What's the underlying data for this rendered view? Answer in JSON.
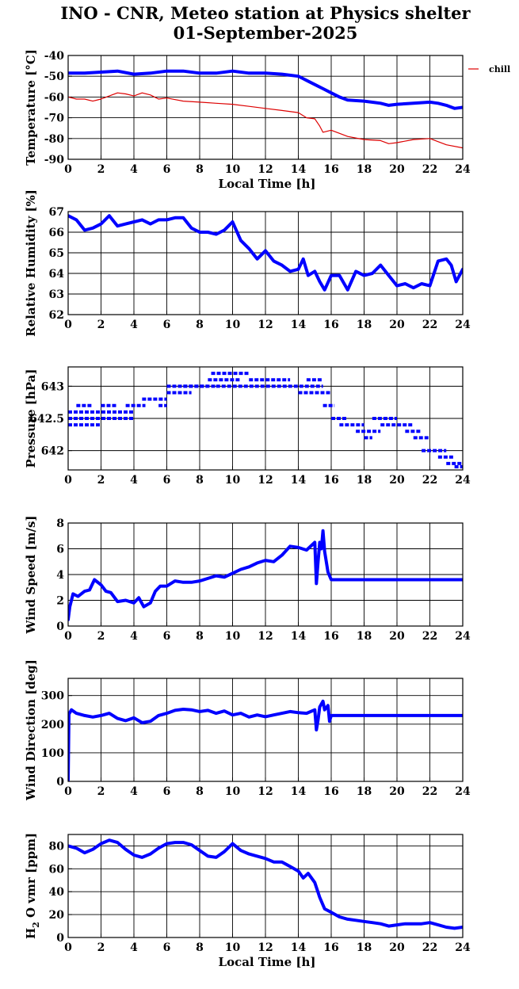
{
  "header": {
    "title_line1": "INO - CNR, Meteo station at Physics shelter",
    "title_line2": "01-September-2025"
  },
  "colors": {
    "series_main": "#0000ff",
    "series_chill": "#dd0000",
    "axes": "#000000",
    "grid": "#000000"
  },
  "chart_data": [
    {
      "type": "line",
      "ylabel": "Temperature [°C]",
      "xlabel": "Local Time [h]",
      "xlim": [
        0,
        24
      ],
      "ylim": [
        -90,
        -40
      ],
      "xticks": [
        "0",
        "2",
        "4",
        "6",
        "8",
        "10",
        "12",
        "14",
        "16",
        "18",
        "20",
        "22",
        "24"
      ],
      "yticks": [
        "-90",
        "-80",
        "-70",
        "-60",
        "-50",
        "-40"
      ],
      "grid": true,
      "legend": {
        "placement": "right",
        "entries": [
          "chill"
        ]
      },
      "series": [
        {
          "color": "#0000ff",
          "x": [
            0,
            1,
            2,
            3,
            4,
            5,
            6,
            7,
            8,
            9,
            10,
            11,
            12,
            13,
            14,
            14.5,
            15,
            15.5,
            16,
            16.5,
            17,
            18,
            19,
            19.5,
            20,
            21,
            22,
            22.5,
            23,
            23.5,
            24
          ],
          "y": [
            -48.5,
            -48.5,
            -48,
            -47.5,
            -49,
            -48.5,
            -47.5,
            -47.5,
            -48.5,
            -48.5,
            -47.5,
            -48.5,
            -48.5,
            -49,
            -50,
            -52,
            -54,
            -56,
            -58,
            -60,
            -61.5,
            -62,
            -63,
            -64,
            -63.5,
            -63,
            -62.5,
            -63,
            -64,
            -65.5,
            -65
          ]
        },
        {
          "name": "chill",
          "color": "#dd0000",
          "x": [
            0,
            0.5,
            1,
            1.5,
            2,
            2.5,
            3,
            3.5,
            4,
            4.5,
            5,
            5.5,
            6,
            7,
            8,
            9,
            10,
            11,
            12,
            13,
            14,
            14.5,
            15,
            15.3,
            15.5,
            16,
            17,
            18,
            19,
            19.5,
            20,
            21,
            22,
            23,
            24
          ],
          "y": [
            -60,
            -61,
            -61,
            -62,
            -61,
            -59.5,
            -58,
            -58.5,
            -59.5,
            -58,
            -59,
            -61,
            -60.5,
            -62,
            -62.5,
            -63,
            -63.5,
            -64.5,
            -65.5,
            -66.5,
            -67.5,
            -70,
            -70.5,
            -74,
            -77,
            -76,
            -79,
            -80.5,
            -81,
            -82.5,
            -82,
            -80.5,
            -80,
            -83,
            -84.5
          ]
        }
      ]
    },
    {
      "type": "line",
      "ylabel": "Relative Humidity [%]",
      "xlabel": "",
      "xlim": [
        0,
        24
      ],
      "ylim": [
        62,
        67
      ],
      "xticks": [
        "0",
        "2",
        "4",
        "6",
        "8",
        "10",
        "12",
        "14",
        "16",
        "18",
        "20",
        "22",
        "24"
      ],
      "yticks": [
        "62",
        "63",
        "64",
        "65",
        "66",
        "67"
      ],
      "grid": true,
      "series": [
        {
          "color": "#0000ff",
          "x": [
            0,
            0.5,
            1,
            1.5,
            2,
            2.5,
            3,
            3.5,
            4,
            4.5,
            5,
            5.5,
            6,
            6.5,
            7,
            7.5,
            8,
            8.5,
            9,
            9.5,
            10,
            10.5,
            11,
            11.5,
            12,
            12.5,
            13,
            13.5,
            14,
            14.3,
            14.6,
            15,
            15.3,
            15.6,
            16,
            16.5,
            17,
            17.5,
            18,
            18.5,
            19,
            19.5,
            20,
            20.5,
            21,
            21.5,
            22,
            22.5,
            23,
            23.3,
            23.6,
            24
          ],
          "y": [
            66.8,
            66.6,
            66.1,
            66.2,
            66.4,
            66.8,
            66.3,
            66.4,
            66.5,
            66.6,
            66.4,
            66.6,
            66.6,
            66.7,
            66.7,
            66.2,
            66.0,
            66.0,
            65.9,
            66.1,
            66.5,
            65.6,
            65.2,
            64.7,
            65.1,
            64.6,
            64.4,
            64.1,
            64.2,
            64.7,
            63.9,
            64.1,
            63.6,
            63.2,
            63.9,
            63.9,
            63.2,
            64.1,
            63.9,
            64.0,
            64.4,
            63.9,
            63.4,
            63.5,
            63.3,
            63.5,
            63.4,
            64.6,
            64.7,
            64.4,
            63.6,
            64.2
          ]
        }
      ]
    },
    {
      "type": "scatter",
      "ylabel": "Pressure [hPa]",
      "xlabel": "",
      "xlim": [
        0,
        24
      ],
      "ylim": [
        641.7,
        643.3
      ],
      "xticks": [
        "0",
        "2",
        "4",
        "6",
        "8",
        "10",
        "12",
        "14",
        "16",
        "18",
        "20",
        "22",
        "24"
      ],
      "yticks": [
        "642",
        "642.5",
        "643"
      ],
      "grid": true,
      "series": [
        {
          "color": "#0000ff",
          "segments": [
            {
              "x0": 0,
              "x1": 4,
              "y": 642.5
            },
            {
              "x0": 0,
              "x1": 4,
              "y": 642.6
            },
            {
              "x0": 0,
              "x1": 2,
              "y": 642.4
            },
            {
              "x0": 0.5,
              "x1": 1.5,
              "y": 642.7
            },
            {
              "x0": 2,
              "x1": 3,
              "y": 642.7
            },
            {
              "x0": 3.5,
              "x1": 4.7,
              "y": 642.7
            },
            {
              "x0": 4.5,
              "x1": 6,
              "y": 642.8
            },
            {
              "x0": 5.5,
              "x1": 6,
              "y": 642.7
            },
            {
              "x0": 6,
              "x1": 9,
              "y": 643.0
            },
            {
              "x0": 6,
              "x1": 7.5,
              "y": 642.9
            },
            {
              "x0": 7,
              "x1": 8.5,
              "y": 643.0
            },
            {
              "x0": 8.5,
              "x1": 10.5,
              "y": 643.1
            },
            {
              "x0": 8.7,
              "x1": 11,
              "y": 643.2
            },
            {
              "x0": 9,
              "x1": 15.5,
              "y": 643.0
            },
            {
              "x0": 11,
              "x1": 13.5,
              "y": 643.1
            },
            {
              "x0": 14.5,
              "x1": 15.5,
              "y": 643.1
            },
            {
              "x0": 14,
              "x1": 16,
              "y": 642.9
            },
            {
              "x0": 15.5,
              "x1": 16.2,
              "y": 642.7
            },
            {
              "x0": 16,
              "x1": 17,
              "y": 642.5
            },
            {
              "x0": 16.5,
              "x1": 18,
              "y": 642.4
            },
            {
              "x0": 17.5,
              "x1": 19,
              "y": 642.3
            },
            {
              "x0": 18,
              "x1": 18.5,
              "y": 642.2
            },
            {
              "x0": 18.5,
              "x1": 20,
              "y": 642.5
            },
            {
              "x0": 19,
              "x1": 21,
              "y": 642.4
            },
            {
              "x0": 20.5,
              "x1": 21.5,
              "y": 642.3
            },
            {
              "x0": 21,
              "x1": 22,
              "y": 642.2
            },
            {
              "x0": 21.5,
              "x1": 23,
              "y": 642.0
            },
            {
              "x0": 22.5,
              "x1": 23.5,
              "y": 641.9
            },
            {
              "x0": 23,
              "x1": 24,
              "y": 641.8
            },
            {
              "x0": 23.5,
              "x1": 24,
              "y": 641.75
            }
          ]
        }
      ]
    },
    {
      "type": "line",
      "ylabel": "Wind Speed [m/s]",
      "xlabel": "",
      "xlim": [
        0,
        24
      ],
      "ylim": [
        0,
        8
      ],
      "xticks": [
        "0",
        "2",
        "4",
        "6",
        "8",
        "10",
        "12",
        "14",
        "16",
        "18",
        "20",
        "22",
        "24"
      ],
      "yticks": [
        "0",
        "2",
        "4",
        "6",
        "8"
      ],
      "grid": true,
      "series": [
        {
          "color": "#0000ff",
          "x": [
            0,
            0.1,
            0.3,
            0.6,
            1,
            1.3,
            1.6,
            2,
            2.3,
            2.6,
            3,
            3.5,
            4,
            4.3,
            4.6,
            5,
            5.3,
            5.6,
            6,
            6.5,
            7,
            7.5,
            8,
            8.5,
            9,
            9.5,
            10,
            10.5,
            11,
            11.5,
            12,
            12.5,
            13,
            13.5,
            14,
            14.5,
            15,
            15.1,
            15.2,
            15.3,
            15.4,
            15.5,
            15.6,
            15.8,
            16,
            17,
            18,
            19,
            20,
            21,
            22,
            23,
            24
          ],
          "y": [
            0.5,
            1.5,
            2.5,
            2.3,
            2.7,
            2.8,
            3.6,
            3.2,
            2.7,
            2.6,
            1.9,
            2.0,
            1.8,
            2.2,
            1.5,
            1.8,
            2.7,
            3.1,
            3.1,
            3.5,
            3.4,
            3.4,
            3.5,
            3.7,
            3.9,
            3.8,
            4.1,
            4.4,
            4.6,
            4.9,
            5.1,
            5.0,
            5.5,
            6.2,
            6.1,
            5.9,
            6.5,
            3.3,
            5.0,
            6.5,
            6.0,
            7.4,
            5.8,
            4.2,
            3.6,
            3.6,
            3.6,
            3.6,
            3.6,
            3.6,
            3.6,
            3.6,
            3.6
          ]
        }
      ]
    },
    {
      "type": "line",
      "ylabel": "Wind Direction [deg]",
      "xlabel": "",
      "xlim": [
        0,
        24
      ],
      "ylim": [
        0,
        360
      ],
      "xticks": [
        "0",
        "2",
        "4",
        "6",
        "8",
        "10",
        "12",
        "14",
        "16",
        "18",
        "20",
        "22",
        "24"
      ],
      "yticks": [
        "0",
        "100",
        "200",
        "300"
      ],
      "grid": true,
      "series": [
        {
          "color": "#0000ff",
          "x": [
            0,
            0.05,
            0.2,
            0.5,
            1,
            1.5,
            2,
            2.5,
            3,
            3.5,
            4,
            4.5,
            5,
            5.5,
            6,
            6.5,
            7,
            7.5,
            8,
            8.5,
            9,
            9.5,
            10,
            10.5,
            11,
            11.5,
            12,
            12.5,
            13,
            13.5,
            14,
            14.5,
            15,
            15.1,
            15.2,
            15.3,
            15.5,
            15.6,
            15.8,
            15.9,
            16,
            17,
            18,
            19,
            20,
            21,
            22,
            23,
            24
          ],
          "y": [
            5,
            235,
            250,
            238,
            230,
            225,
            230,
            238,
            220,
            212,
            222,
            205,
            210,
            230,
            238,
            248,
            252,
            250,
            244,
            248,
            238,
            246,
            232,
            238,
            225,
            232,
            226,
            232,
            238,
            244,
            240,
            238,
            250,
            180,
            215,
            260,
            280,
            250,
            265,
            210,
            230,
            230,
            230,
            230,
            230,
            230,
            230,
            230,
            230
          ]
        }
      ]
    },
    {
      "type": "line",
      "ylabel": "H2O vmr [ppm]",
      "xlabel": "Local Time [h]",
      "xlim": [
        0,
        24
      ],
      "ylim": [
        0,
        90
      ],
      "xticks": [
        "0",
        "2",
        "4",
        "6",
        "8",
        "10",
        "12",
        "14",
        "16",
        "18",
        "20",
        "22",
        "24"
      ],
      "yticks": [
        "0",
        "20",
        "40",
        "60",
        "80"
      ],
      "grid": true,
      "series": [
        {
          "color": "#0000ff",
          "x": [
            0,
            0.5,
            1,
            1.5,
            2,
            2.5,
            3,
            3.5,
            4,
            4.5,
            5,
            5.5,
            6,
            6.5,
            7,
            7.5,
            8,
            8.5,
            9,
            9.5,
            10,
            10.5,
            11,
            11.5,
            12,
            12.5,
            13,
            13.5,
            14,
            14.3,
            14.6,
            15,
            15.3,
            15.6,
            16,
            16.5,
            17,
            17.5,
            18,
            18.5,
            19,
            19.5,
            20,
            20.5,
            21,
            21.5,
            22,
            22.5,
            23,
            23.5,
            24
          ],
          "y": [
            80,
            78,
            74,
            77,
            82,
            85,
            83,
            77,
            72,
            70,
            73,
            78,
            82,
            83,
            83,
            81,
            76,
            71,
            70,
            75,
            82,
            76,
            73,
            71,
            69,
            66,
            66,
            62,
            58,
            52,
            56,
            48,
            35,
            25,
            22,
            18,
            16,
            15,
            14,
            13,
            12,
            10,
            11,
            12,
            12,
            12,
            13,
            11,
            9,
            8,
            9
          ]
        }
      ]
    }
  ]
}
